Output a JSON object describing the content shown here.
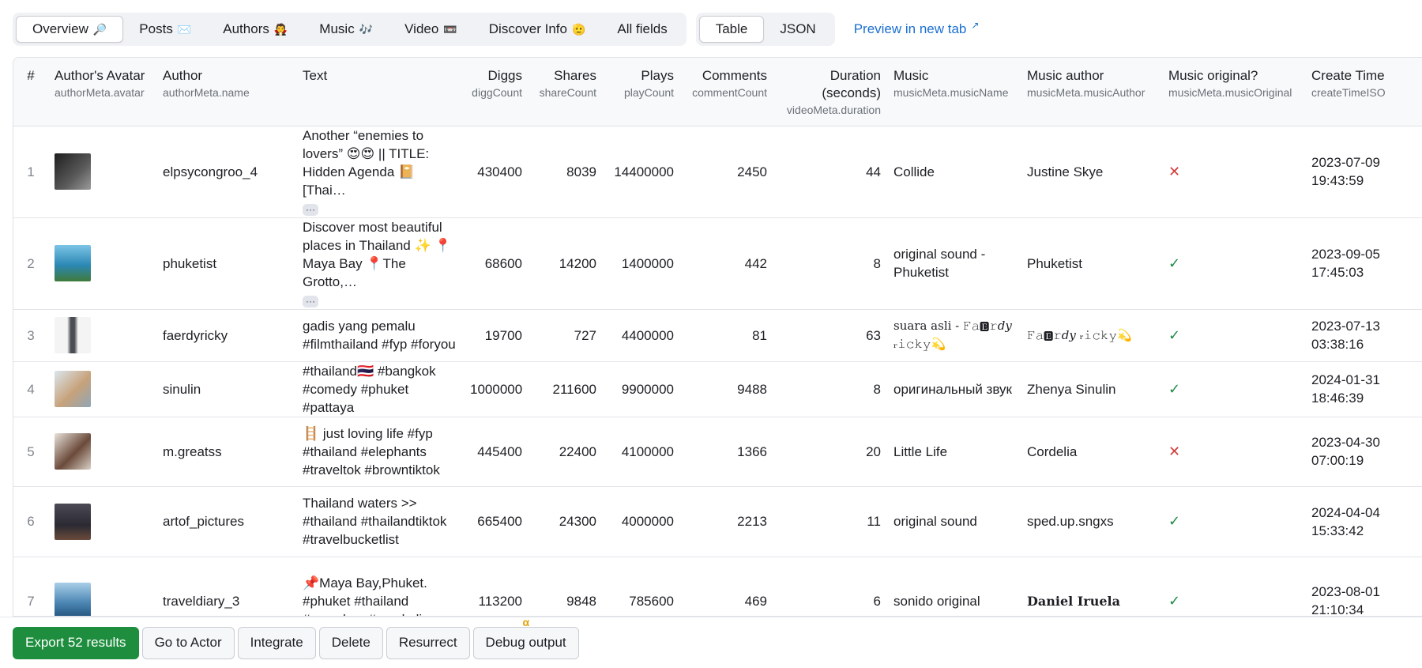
{
  "tabs": [
    {
      "label": "Overview",
      "emoji": "🔎",
      "active": true
    },
    {
      "label": "Posts",
      "emoji": "✉️",
      "active": false
    },
    {
      "label": "Authors",
      "emoji": "🧛",
      "active": false
    },
    {
      "label": "Music",
      "emoji": "🎶",
      "active": false
    },
    {
      "label": "Video",
      "emoji": "📼",
      "active": false
    },
    {
      "label": "Discover Info",
      "emoji": "🫡",
      "active": false
    },
    {
      "label": "All fields",
      "emoji": "",
      "active": false
    }
  ],
  "views": [
    {
      "label": "Table",
      "active": true
    },
    {
      "label": "JSON",
      "active": false
    }
  ],
  "preview_link": {
    "label": "Preview in new tab",
    "icon": "external-link-icon"
  },
  "columns": [
    {
      "title": "#",
      "sub": ""
    },
    {
      "title": "Author's Avatar",
      "sub": "authorMeta.avatar"
    },
    {
      "title": "Author",
      "sub": "authorMeta.name"
    },
    {
      "title": "Text",
      "sub": ""
    },
    {
      "title": "Diggs",
      "sub": "diggCount"
    },
    {
      "title": "Shares",
      "sub": "shareCount"
    },
    {
      "title": "Plays",
      "sub": "playCount"
    },
    {
      "title": "Comments",
      "sub": "commentCount"
    },
    {
      "title": "Duration (seconds)",
      "sub": "videoMeta.duration"
    },
    {
      "title": "Music",
      "sub": "musicMeta.musicName"
    },
    {
      "title": "Music author",
      "sub": "musicMeta.musicAuthor"
    },
    {
      "title": "Music original?",
      "sub": "musicMeta.musicOriginal"
    },
    {
      "title": "Create Time",
      "sub": "createTimeISO"
    }
  ],
  "rows": [
    {
      "idx": "1",
      "avatar_color": "#3a3a3a",
      "author": "elpsycongroo_4",
      "text": "Another “enemies to lovers” 😍😍 || TITLE: Hidden Agenda 📔 [Thai…",
      "more": "···",
      "diggs": "430400",
      "shares": "8039",
      "plays": "14400000",
      "comments": "2450",
      "duration": "44",
      "music": "Collide",
      "music_author": "Justine Skye",
      "original": false,
      "time1": "2023-07-09",
      "time2": "19:43:59"
    },
    {
      "idx": "2",
      "avatar_color": "#2e8fb8",
      "author": "phuketist",
      "text": "Discover most beautiful places in Thailand ✨ 📍Maya Bay 📍The Grotto,…",
      "more": "···",
      "diggs": "68600",
      "shares": "14200",
      "plays": "1400000",
      "comments": "442",
      "duration": "8",
      "music": "original sound - Phuketist",
      "music_author": "Phuketist",
      "original": true,
      "time1": "2023-09-05",
      "time2": "17:45:03"
    },
    {
      "idx": "3",
      "avatar_color": "#6c6f73",
      "author": "faerdyricky",
      "text": "gadis yang pemalu #filmthailand #fyp #foryou",
      "more": "",
      "diggs": "19700",
      "shares": "727",
      "plays": "4400000",
      "comments": "81",
      "duration": "63",
      "music": "suara asli - 𝙵𝚊🅴𝚛𝑑𝑦 ᵣ𝚒𝚌𝚔𝚢💫",
      "music_author": "𝙵𝚊🅴𝚛𝑑𝑦 ᵣ𝚒𝚌𝚔𝚢💫",
      "original": true,
      "time1": "2023-07-13",
      "time2": "03:38:16"
    },
    {
      "idx": "4",
      "avatar_color": "#b9c9d6",
      "author": "sinulin",
      "text": "#thailand🇹🇭 #bangkok #comedy #phuket #pattaya",
      "more": "",
      "diggs": "1000000",
      "shares": "211600",
      "plays": "9900000",
      "comments": "9488",
      "duration": "8",
      "music": "оригинальный звук",
      "music_author": "Zhenya Sinulin",
      "original": true,
      "time1": "2024-01-31",
      "time2": "18:46:39"
    },
    {
      "idx": "5",
      "avatar_color": "#8a6a55",
      "author": "m.greatss",
      "text": "🪜 just loving life #fyp #thailand #elephants #traveltok #browntiktok",
      "more": "",
      "diggs": "445400",
      "shares": "22400",
      "plays": "4100000",
      "comments": "1366",
      "duration": "20",
      "music": "Little Life",
      "music_author": "Cordelia",
      "original": false,
      "time1": "2023-04-30",
      "time2": "07:00:19"
    },
    {
      "idx": "6",
      "avatar_color": "#3d3a44",
      "author": "artof_pictures",
      "text": "Thailand waters >> #thailand #thailandtiktok #travelbucketlist",
      "more": "",
      "diggs": "665400",
      "shares": "24300",
      "plays": "4000000",
      "comments": "2213",
      "duration": "11",
      "music": "original sound",
      "music_author": "sped.up.sngxs",
      "original": true,
      "time1": "2024-04-04",
      "time2": "15:33:42"
    },
    {
      "idx": "7",
      "avatar_color": "#5b8db5",
      "author": "traveldiary_3",
      "text": "📌Maya Bay,Phuket. #phuket #thailand #mayabay #snorkeling…",
      "more": "",
      "diggs": "113200",
      "shares": "9848",
      "plays": "785600",
      "comments": "469",
      "duration": "6",
      "music": "sonido original",
      "music_author": "Daniel Iruela",
      "original": true,
      "time1": "2023-08-01",
      "time2": "21:10:34"
    }
  ],
  "bottom": {
    "export": "Export 52 results",
    "goto": "Go to Actor",
    "integrate": "Integrate",
    "delete": "Delete",
    "resurrect": "Resurrect",
    "debug": "Debug output",
    "alpha": "α"
  }
}
